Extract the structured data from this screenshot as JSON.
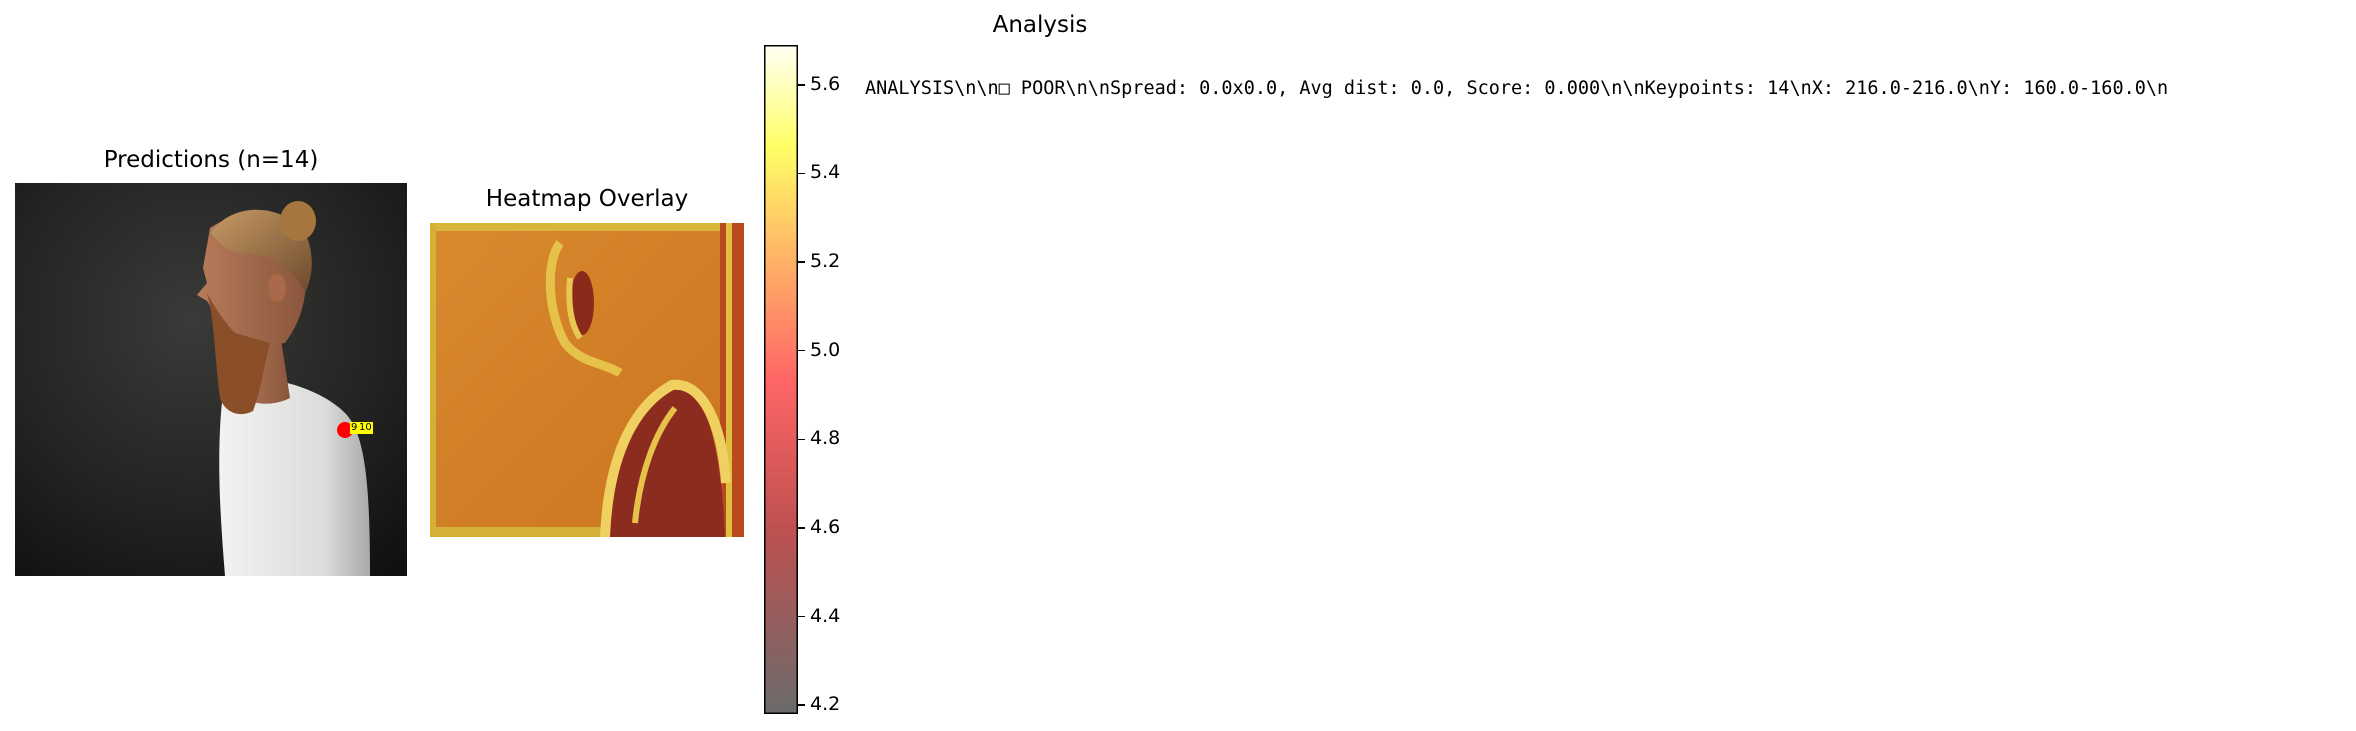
{
  "panels": {
    "predictions": {
      "title": "Predictions (n=14)"
    },
    "heatmap": {
      "title": "Heatmap Overlay"
    },
    "analysis": {
      "title": "Analysis",
      "text": "ANALYSIS\\n\\n□ POOR\\n\\nSpread: 0.0x0.0, Avg dist: 0.0, Score: 0.000\\n\\nKeypoints: 14\\nX: 216.0-216.0\\nY: 160.0-160.0\\n"
    }
  },
  "colorbar": {
    "ticks": [
      "4.2",
      "4.4",
      "4.6",
      "4.8",
      "5.0",
      "5.2",
      "5.4",
      "5.6"
    ],
    "tick_values": [
      4.2,
      4.4,
      4.6,
      4.8,
      5.0,
      5.2,
      5.4,
      5.6
    ],
    "range": [
      4.18,
      5.69
    ],
    "colormap": "hot",
    "alpha": 0.6
  },
  "prediction_marker": {
    "labels": [
      "9",
      "10"
    ],
    "color": "#ff0000",
    "label_bg": "#ffff00"
  },
  "chart_data": [
    {
      "type": "scatter",
      "title": "Predictions (n=14)",
      "series": [
        {
          "x": [
            216.0
          ],
          "y": [
            160.0
          ]
        }
      ],
      "keypoint_count": 14
    },
    {
      "type": "heatmap",
      "title": "Heatmap Overlay",
      "colorbar_range": [
        4.18,
        5.69
      ],
      "colorbar_ticks": [
        4.2,
        4.4,
        4.6,
        4.8,
        5.0,
        5.2,
        5.4,
        5.6
      ]
    }
  ]
}
